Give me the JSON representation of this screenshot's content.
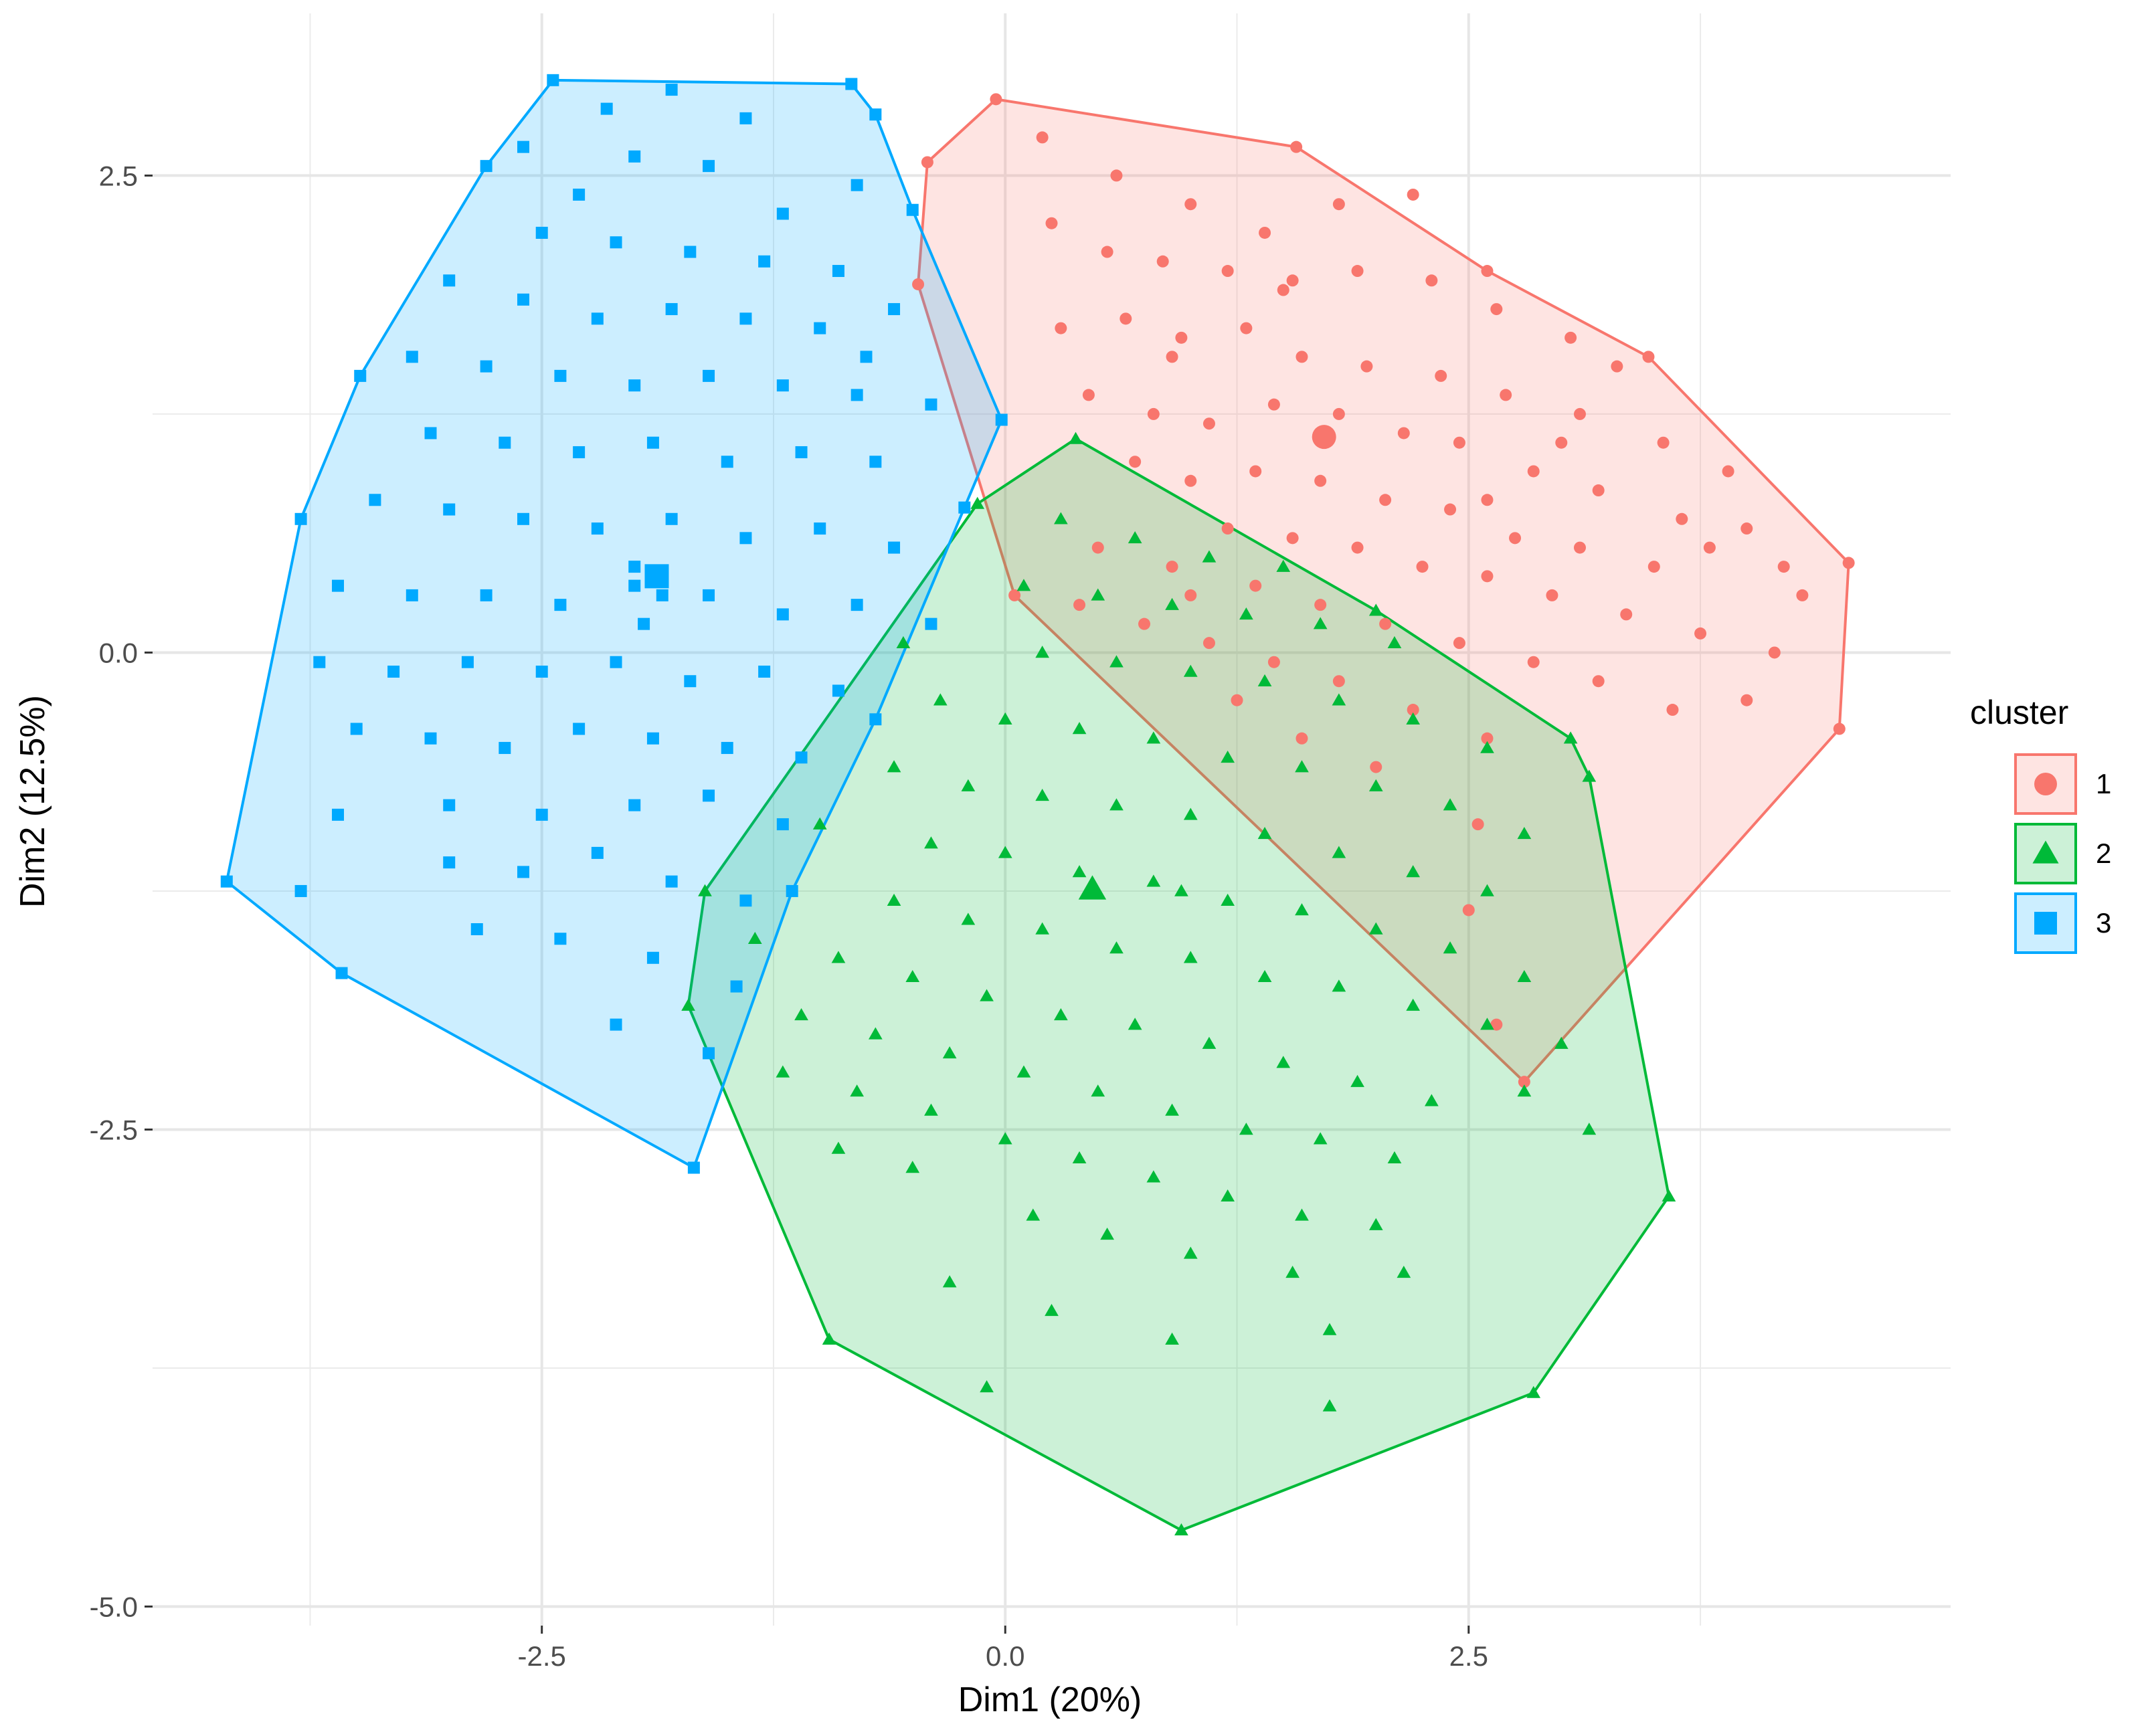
{
  "chart_data": {
    "type": "scatter",
    "title": "",
    "xlabel": "Dim1 (20%)",
    "ylabel": "Dim2 (12.5%)",
    "xlim": [
      -4.6,
      5.1
    ],
    "ylim": [
      -5.1,
      3.35
    ],
    "xticks": [
      -2.5,
      0.0,
      2.5
    ],
    "xtick_labels": [
      "-2.5",
      "0.0",
      "2.5"
    ],
    "yticks": [
      -5.0,
      -2.5,
      0.0,
      2.5
    ],
    "ytick_labels": [
      "-5.0",
      "-2.5",
      "0.0",
      "2.5"
    ],
    "grid": true,
    "legend": {
      "title": "cluster",
      "position": "right"
    },
    "series": [
      {
        "name": "1",
        "marker": "circle",
        "color": "#F8766D",
        "centroid": [
          1.72,
          1.13
        ],
        "hull": [
          [
            -0.05,
            2.9
          ],
          [
            1.57,
            2.65
          ],
          [
            2.6,
            2.0
          ],
          [
            3.47,
            1.55
          ],
          [
            4.55,
            0.47
          ],
          [
            4.5,
            -0.4
          ],
          [
            2.8,
            -2.25
          ],
          [
            0.05,
            0.3
          ],
          [
            -0.47,
            1.93
          ],
          [
            -0.42,
            2.57
          ]
        ],
        "points": [
          [
            0.2,
            2.7
          ],
          [
            0.6,
            2.5
          ],
          [
            1.0,
            2.35
          ],
          [
            1.4,
            2.2
          ],
          [
            1.8,
            2.35
          ],
          [
            2.2,
            2.4
          ],
          [
            0.25,
            2.25
          ],
          [
            0.55,
            2.1
          ],
          [
            0.85,
            2.05
          ],
          [
            1.2,
            2.0
          ],
          [
            1.55,
            1.95
          ],
          [
            1.9,
            2.0
          ],
          [
            2.3,
            1.95
          ],
          [
            2.65,
            1.8
          ],
          [
            3.05,
            1.65
          ],
          [
            3.3,
            1.5
          ],
          [
            0.3,
            1.7
          ],
          [
            0.65,
            1.75
          ],
          [
            0.95,
            1.65
          ],
          [
            1.3,
            1.7
          ],
          [
            1.6,
            1.55
          ],
          [
            1.95,
            1.5
          ],
          [
            2.35,
            1.45
          ],
          [
            2.7,
            1.35
          ],
          [
            3.1,
            1.25
          ],
          [
            3.55,
            1.1
          ],
          [
            3.9,
            0.95
          ],
          [
            0.45,
            1.35
          ],
          [
            0.8,
            1.25
          ],
          [
            1.1,
            1.2
          ],
          [
            1.45,
            1.3
          ],
          [
            1.8,
            1.25
          ],
          [
            2.15,
            1.15
          ],
          [
            2.45,
            1.1
          ],
          [
            2.85,
            0.95
          ],
          [
            3.2,
            0.85
          ],
          [
            3.65,
            0.7
          ],
          [
            4.0,
            0.65
          ],
          [
            0.7,
            1.0
          ],
          [
            1.0,
            0.9
          ],
          [
            1.35,
            0.95
          ],
          [
            1.7,
            0.9
          ],
          [
            2.05,
            0.8
          ],
          [
            2.4,
            0.75
          ],
          [
            2.75,
            0.6
          ],
          [
            3.1,
            0.55
          ],
          [
            3.5,
            0.45
          ],
          [
            4.2,
            0.45
          ],
          [
            1.2,
            0.65
          ],
          [
            1.55,
            0.6
          ],
          [
            1.9,
            0.55
          ],
          [
            2.25,
            0.45
          ],
          [
            2.6,
            0.4
          ],
          [
            2.95,
            0.3
          ],
          [
            3.35,
            0.2
          ],
          [
            3.75,
            0.1
          ],
          [
            4.15,
            0.0
          ],
          [
            1.0,
            0.3
          ],
          [
            1.35,
            0.35
          ],
          [
            1.7,
            0.25
          ],
          [
            2.05,
            0.15
          ],
          [
            2.45,
            0.05
          ],
          [
            2.85,
            -0.05
          ],
          [
            3.2,
            -0.15
          ],
          [
            3.6,
            -0.3
          ],
          [
            4.0,
            -0.25
          ],
          [
            0.4,
            0.25
          ],
          [
            0.75,
            0.15
          ],
          [
            1.1,
            0.05
          ],
          [
            1.45,
            -0.05
          ],
          [
            1.8,
            -0.15
          ],
          [
            2.2,
            -0.3
          ],
          [
            2.6,
            -0.45
          ],
          [
            0.5,
            0.55
          ],
          [
            0.9,
            0.45
          ],
          [
            1.25,
            -0.25
          ],
          [
            1.6,
            -0.45
          ],
          [
            2.0,
            -0.6
          ],
          [
            2.55,
            -0.9
          ],
          [
            2.5,
            -1.35
          ],
          [
            2.65,
            -1.95
          ],
          [
            0.9,
            1.55
          ],
          [
            1.5,
            1.9
          ],
          [
            2.6,
            0.8
          ],
          [
            3.0,
            1.1
          ],
          [
            3.8,
            0.55
          ],
          [
            4.3,
            0.3
          ]
        ]
      },
      {
        "name": "2",
        "marker": "triangle",
        "color": "#00BA38",
        "centroid": [
          0.47,
          -1.24
        ],
        "hull": [
          [
            0.38,
            1.12
          ],
          [
            2.0,
            0.22
          ],
          [
            3.05,
            -0.45
          ],
          [
            3.15,
            -0.65
          ],
          [
            3.58,
            -2.85
          ],
          [
            2.85,
            -3.88
          ],
          [
            0.95,
            -4.6
          ],
          [
            -0.95,
            -3.6
          ],
          [
            -1.71,
            -1.85
          ],
          [
            -1.62,
            -1.25
          ],
          [
            -0.15,
            0.78
          ]
        ],
        "points": [
          [
            0.3,
            0.7
          ],
          [
            0.7,
            0.6
          ],
          [
            1.1,
            0.5
          ],
          [
            1.5,
            0.45
          ],
          [
            0.1,
            0.35
          ],
          [
            0.5,
            0.3
          ],
          [
            0.9,
            0.25
          ],
          [
            1.3,
            0.2
          ],
          [
            1.7,
            0.15
          ],
          [
            2.1,
            0.05
          ],
          [
            0.2,
            0.0
          ],
          [
            0.6,
            -0.05
          ],
          [
            1.0,
            -0.1
          ],
          [
            1.4,
            -0.15
          ],
          [
            1.8,
            -0.25
          ],
          [
            2.2,
            -0.35
          ],
          [
            2.6,
            -0.5
          ],
          [
            0.0,
            -0.35
          ],
          [
            0.4,
            -0.4
          ],
          [
            0.8,
            -0.45
          ],
          [
            1.2,
            -0.55
          ],
          [
            1.6,
            -0.6
          ],
          [
            2.0,
            -0.7
          ],
          [
            2.4,
            -0.8
          ],
          [
            2.8,
            -0.95
          ],
          [
            -0.2,
            -0.7
          ],
          [
            0.2,
            -0.75
          ],
          [
            0.6,
            -0.8
          ],
          [
            1.0,
            -0.85
          ],
          [
            1.4,
            -0.95
          ],
          [
            1.8,
            -1.05
          ],
          [
            2.2,
            -1.15
          ],
          [
            2.6,
            -1.25
          ],
          [
            -0.4,
            -1.0
          ],
          [
            0.0,
            -1.05
          ],
          [
            0.4,
            -1.15
          ],
          [
            0.8,
            -1.2
          ],
          [
            1.2,
            -1.3
          ],
          [
            1.6,
            -1.35
          ],
          [
            2.0,
            -1.45
          ],
          [
            2.4,
            -1.55
          ],
          [
            2.8,
            -1.7
          ],
          [
            -0.6,
            -1.3
          ],
          [
            -0.2,
            -1.4
          ],
          [
            0.2,
            -1.45
          ],
          [
            0.6,
            -1.55
          ],
          [
            1.0,
            -1.6
          ],
          [
            1.4,
            -1.7
          ],
          [
            1.8,
            -1.75
          ],
          [
            2.2,
            -1.85
          ],
          [
            2.6,
            -1.95
          ],
          [
            3.0,
            -2.05
          ],
          [
            -0.9,
            -1.6
          ],
          [
            -0.5,
            -1.7
          ],
          [
            -0.1,
            -1.8
          ],
          [
            0.3,
            -1.9
          ],
          [
            0.7,
            -1.95
          ],
          [
            1.1,
            -2.05
          ],
          [
            1.5,
            -2.15
          ],
          [
            1.9,
            -2.25
          ],
          [
            2.3,
            -2.35
          ],
          [
            -1.1,
            -1.9
          ],
          [
            -0.7,
            -2.0
          ],
          [
            -0.3,
            -2.1
          ],
          [
            0.1,
            -2.2
          ],
          [
            0.5,
            -2.3
          ],
          [
            0.9,
            -2.4
          ],
          [
            1.3,
            -2.5
          ],
          [
            1.7,
            -2.55
          ],
          [
            2.1,
            -2.65
          ],
          [
            -1.2,
            -2.2
          ],
          [
            -0.8,
            -2.3
          ],
          [
            -0.4,
            -2.4
          ],
          [
            0.0,
            -2.55
          ],
          [
            0.4,
            -2.65
          ],
          [
            0.8,
            -2.75
          ],
          [
            1.2,
            -2.85
          ],
          [
            1.6,
            -2.95
          ],
          [
            2.0,
            -3.0
          ],
          [
            -0.9,
            -2.6
          ],
          [
            -0.5,
            -2.7
          ],
          [
            0.15,
            -2.95
          ],
          [
            0.55,
            -3.05
          ],
          [
            1.0,
            -3.15
          ],
          [
            1.55,
            -3.25
          ],
          [
            1.75,
            -3.55
          ],
          [
            -0.3,
            -3.3
          ],
          [
            0.25,
            -3.45
          ],
          [
            0.9,
            -3.6
          ],
          [
            -0.1,
            -3.85
          ],
          [
            1.75,
            -3.95
          ],
          [
            2.15,
            -3.25
          ],
          [
            3.15,
            -2.5
          ],
          [
            2.8,
            -2.3
          ],
          [
            -1.35,
            -1.5
          ],
          [
            -1.0,
            -0.9
          ],
          [
            -0.6,
            -0.6
          ],
          [
            -0.35,
            -0.25
          ],
          [
            -0.55,
            0.05
          ],
          [
            0.95,
            -1.25
          ]
        ]
      },
      {
        "name": "3",
        "marker": "square",
        "color": "#00A9FF",
        "centroid": [
          -1.88,
          0.4
        ],
        "hull": [
          [
            -2.44,
            3.0
          ],
          [
            -0.83,
            2.98
          ],
          [
            -0.7,
            2.82
          ],
          [
            -0.5,
            2.32
          ],
          [
            -0.02,
            1.22
          ],
          [
            -0.22,
            0.76
          ],
          [
            -0.7,
            -0.35
          ],
          [
            -1.15,
            -1.25
          ],
          [
            -1.68,
            -2.7
          ],
          [
            -3.58,
            -1.68
          ],
          [
            -4.2,
            -1.2
          ],
          [
            -3.8,
            0.7
          ],
          [
            -3.48,
            1.45
          ],
          [
            -2.8,
            2.55
          ]
        ],
        "points": [
          [
            -1.8,
            2.95
          ],
          [
            -1.4,
            2.8
          ],
          [
            -2.0,
            2.6
          ],
          [
            -1.6,
            2.55
          ],
          [
            -2.6,
            2.65
          ],
          [
            -2.3,
            2.4
          ],
          [
            -1.2,
            2.3
          ],
          [
            -0.8,
            2.45
          ],
          [
            -2.5,
            2.2
          ],
          [
            -2.1,
            2.15
          ],
          [
            -1.7,
            2.1
          ],
          [
            -1.3,
            2.05
          ],
          [
            -0.9,
            2.0
          ],
          [
            -3.0,
            1.95
          ],
          [
            -2.6,
            1.85
          ],
          [
            -2.2,
            1.75
          ],
          [
            -1.8,
            1.8
          ],
          [
            -1.4,
            1.75
          ],
          [
            -1.0,
            1.7
          ],
          [
            -0.6,
            1.8
          ],
          [
            -3.2,
            1.55
          ],
          [
            -2.8,
            1.5
          ],
          [
            -2.4,
            1.45
          ],
          [
            -2.0,
            1.4
          ],
          [
            -1.6,
            1.45
          ],
          [
            -1.2,
            1.4
          ],
          [
            -0.8,
            1.35
          ],
          [
            -0.4,
            1.3
          ],
          [
            -3.1,
            1.15
          ],
          [
            -2.7,
            1.1
          ],
          [
            -2.3,
            1.05
          ],
          [
            -1.9,
            1.1
          ],
          [
            -1.5,
            1.0
          ],
          [
            -1.1,
            1.05
          ],
          [
            -0.7,
            1.0
          ],
          [
            -3.4,
            0.8
          ],
          [
            -3.0,
            0.75
          ],
          [
            -2.6,
            0.7
          ],
          [
            -2.2,
            0.65
          ],
          [
            -1.8,
            0.7
          ],
          [
            -1.4,
            0.6
          ],
          [
            -1.0,
            0.65
          ],
          [
            -0.6,
            0.55
          ],
          [
            -3.6,
            0.35
          ],
          [
            -3.2,
            0.3
          ],
          [
            -2.8,
            0.3
          ],
          [
            -2.4,
            0.25
          ],
          [
            -2.0,
            0.35
          ],
          [
            -1.6,
            0.3
          ],
          [
            -1.2,
            0.2
          ],
          [
            -0.8,
            0.25
          ],
          [
            -0.4,
            0.15
          ],
          [
            -3.7,
            -0.05
          ],
          [
            -3.3,
            -0.1
          ],
          [
            -2.9,
            -0.05
          ],
          [
            -2.5,
            -0.1
          ],
          [
            -2.1,
            -0.05
          ],
          [
            -1.7,
            -0.15
          ],
          [
            -1.3,
            -0.1
          ],
          [
            -0.9,
            -0.2
          ],
          [
            -3.5,
            -0.4
          ],
          [
            -3.1,
            -0.45
          ],
          [
            -2.7,
            -0.5
          ],
          [
            -2.3,
            -0.4
          ],
          [
            -1.9,
            -0.45
          ],
          [
            -1.5,
            -0.5
          ],
          [
            -1.1,
            -0.55
          ],
          [
            -3.6,
            -0.85
          ],
          [
            -3.0,
            -0.8
          ],
          [
            -2.5,
            -0.85
          ],
          [
            -2.0,
            -0.8
          ],
          [
            -1.6,
            -0.75
          ],
          [
            -1.2,
            -0.9
          ],
          [
            -3.0,
            -1.1
          ],
          [
            -2.6,
            -1.15
          ],
          [
            -2.2,
            -1.05
          ],
          [
            -1.8,
            -1.2
          ],
          [
            -1.4,
            -1.3
          ],
          [
            -3.8,
            -1.25
          ],
          [
            -2.85,
            -1.45
          ],
          [
            -2.4,
            -1.5
          ],
          [
            -1.9,
            -1.6
          ],
          [
            -1.45,
            -1.75
          ],
          [
            -2.1,
            -1.95
          ],
          [
            -1.6,
            -2.1
          ],
          [
            -2.0,
            0.45
          ],
          [
            -1.85,
            0.3
          ],
          [
            -1.95,
            0.15
          ],
          [
            -2.15,
            2.85
          ],
          [
            -0.75,
            1.55
          ]
        ]
      }
    ]
  }
}
